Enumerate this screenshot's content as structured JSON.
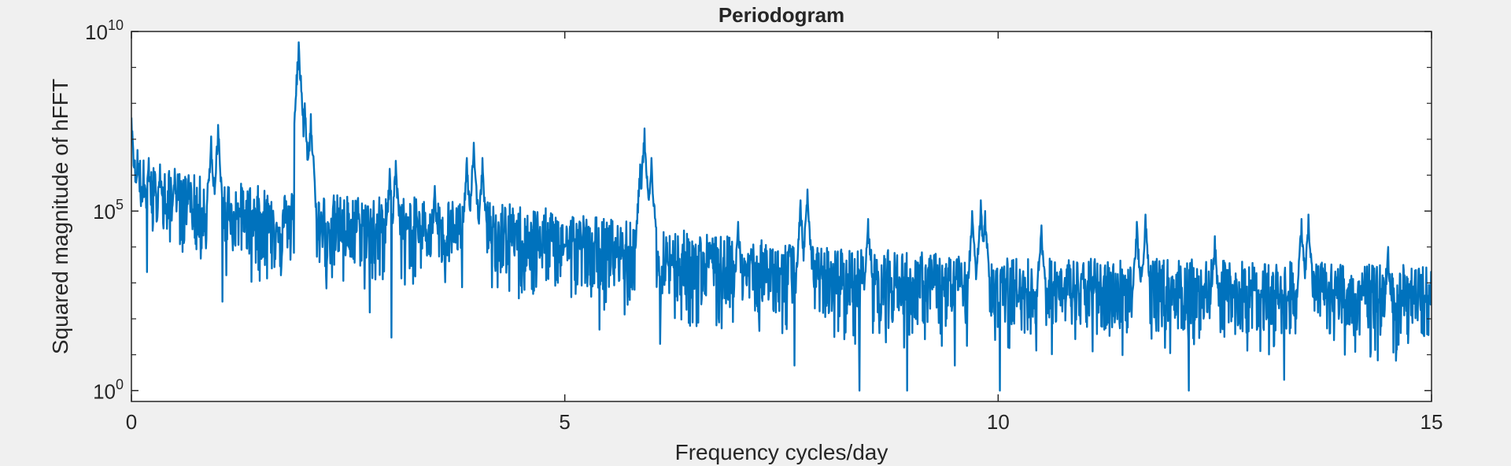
{
  "chart_data": {
    "type": "line",
    "title": "Periodogram",
    "xlabel": "Frequency cycles/day",
    "ylabel": "Squared magnitude of hFFT",
    "xlim": [
      0,
      15
    ],
    "ylim": [
      0.5,
      10000000000
    ],
    "yscale": "log",
    "grid": false,
    "x_ticks": [
      0,
      5,
      10,
      15
    ],
    "x_tick_labels": [
      "0",
      "5",
      "10",
      "15"
    ],
    "y_ticks": [
      {
        "value": 1,
        "base": "10",
        "exp": "0"
      },
      {
        "value": 100000,
        "base": "10",
        "exp": "5"
      },
      {
        "value": 10000000000,
        "base": "10",
        "exp": "10"
      }
    ],
    "y_minor_ticks": [
      10,
      100,
      1000,
      10000,
      1000000,
      10000000,
      100000000,
      1000000000
    ],
    "series": [
      {
        "color": "#0072BD",
        "baseline": [
          [
            0,
            1000000
          ],
          [
            0.3,
            300000
          ],
          [
            1.0,
            150000
          ],
          [
            1.7,
            80000
          ],
          [
            2.1,
            60000
          ],
          [
            3.0,
            50000
          ],
          [
            4.0,
            40000
          ],
          [
            5.0,
            20000
          ],
          [
            6.0,
            8000
          ],
          [
            7.0,
            3500
          ],
          [
            8.0,
            2000
          ],
          [
            9.0,
            1500
          ],
          [
            10.0,
            1000
          ],
          [
            12.0,
            900
          ],
          [
            15.0,
            600
          ]
        ],
        "peaks": [
          {
            "x": 0.0,
            "y": 40000000
          },
          {
            "x": 0.07,
            "y": 5000000
          },
          {
            "x": 0.2,
            "y": 3000000
          },
          {
            "x": 0.33,
            "y": 2000000
          },
          {
            "x": 0.5,
            "y": 1500000
          },
          {
            "x": 0.66,
            "y": 1000000
          },
          {
            "x": 0.92,
            "y": 12000000
          },
          {
            "x": 1.0,
            "y": 25000000
          },
          {
            "x": 1.93,
            "y": 5000000000
          },
          {
            "x": 2.0,
            "y": 100000000
          },
          {
            "x": 2.07,
            "y": 50000000
          },
          {
            "x": 2.98,
            "y": 1500000
          },
          {
            "x": 3.05,
            "y": 2500000
          },
          {
            "x": 3.5,
            "y": 500000
          },
          {
            "x": 3.87,
            "y": 3000000
          },
          {
            "x": 3.95,
            "y": 8000000
          },
          {
            "x": 4.05,
            "y": 3000000
          },
          {
            "x": 5.87,
            "y": 2000000
          },
          {
            "x": 5.92,
            "y": 20000000
          },
          {
            "x": 6.0,
            "y": 3000000
          },
          {
            "x": 7.0,
            "y": 50000
          },
          {
            "x": 7.72,
            "y": 200000
          },
          {
            "x": 7.8,
            "y": 400000
          },
          {
            "x": 8.5,
            "y": 60000
          },
          {
            "x": 9.7,
            "y": 100000
          },
          {
            "x": 9.8,
            "y": 200000
          },
          {
            "x": 9.85,
            "y": 100000
          },
          {
            "x": 10.5,
            "y": 40000
          },
          {
            "x": 11.6,
            "y": 50000
          },
          {
            "x": 11.7,
            "y": 80000
          },
          {
            "x": 12.5,
            "y": 20000
          },
          {
            "x": 13.5,
            "y": 60000
          },
          {
            "x": 13.58,
            "y": 80000
          },
          {
            "x": 14.5,
            "y": 10000
          }
        ],
        "dips": [
          {
            "x": 0.18,
            "y": 2000
          },
          {
            "x": 1.05,
            "y": 300
          },
          {
            "x": 2.75,
            "y": 150
          },
          {
            "x": 3.0,
            "y": 30
          },
          {
            "x": 5.4,
            "y": 50
          },
          {
            "x": 6.1,
            "y": 20
          },
          {
            "x": 7.65,
            "y": 5
          },
          {
            "x": 8.35,
            "y": 20
          },
          {
            "x": 8.4,
            "y": 1
          },
          {
            "x": 8.95,
            "y": 1
          },
          {
            "x": 9.5,
            "y": 5
          },
          {
            "x": 10.02,
            "y": 1
          },
          {
            "x": 12.2,
            "y": 1
          },
          {
            "x": 13.3,
            "y": 2
          },
          {
            "x": 14.0,
            "y": 10
          }
        ]
      }
    ]
  }
}
